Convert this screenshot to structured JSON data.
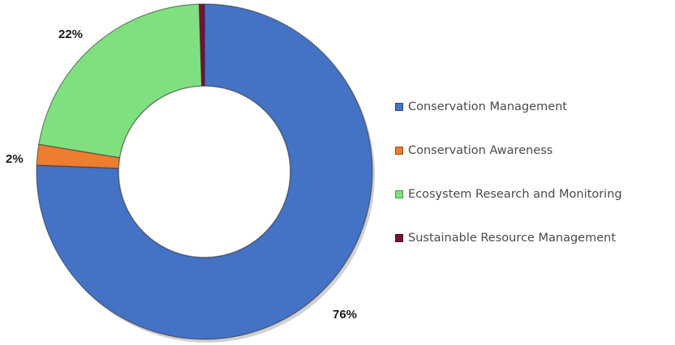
{
  "chart_data": {
    "type": "pie",
    "variant": "donut",
    "title": "",
    "legend_position": "right",
    "series": [
      {
        "name": "",
        "slices": [
          {
            "label": "Conservation Management",
            "value": 76,
            "display": "76%",
            "color": "#4472C4"
          },
          {
            "label": "Conservation Awareness",
            "value": 2,
            "display": "2%",
            "color": "#ED7D31"
          },
          {
            "label": "Ecosystem Research and Monitoring",
            "value": 22,
            "display": "22%",
            "color": "#7FE07F"
          },
          {
            "label": "Sustainable Resource Management",
            "value": 0.5,
            "display": "",
            "color": "#7B1035"
          }
        ]
      }
    ]
  }
}
